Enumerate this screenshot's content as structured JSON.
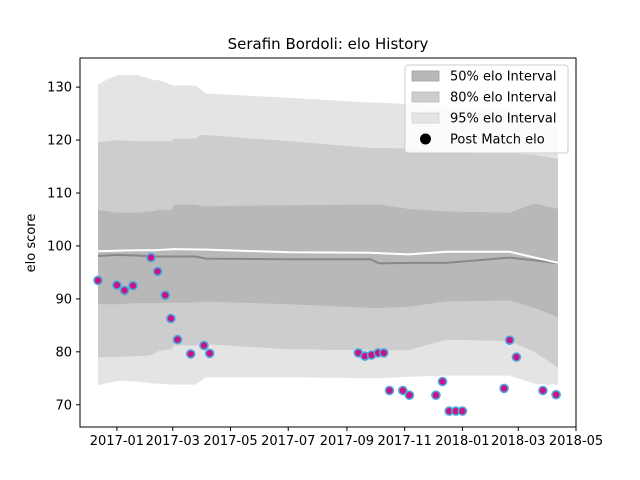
{
  "chart_data": {
    "type": "line",
    "title": "Serafin Bordoli: elo History",
    "xlabel": "",
    "ylabel": "elo score",
    "xlim": [
      "2016-11-23",
      "2018-05-01"
    ],
    "ylim": [
      65.8,
      135.5
    ],
    "x_ticks": [
      "2017-01",
      "2017-03",
      "2017-05",
      "2017-07",
      "2017-09",
      "2017-11",
      "2018-01",
      "2018-03",
      "2018-05"
    ],
    "y_ticks": [
      70,
      80,
      90,
      100,
      110,
      120,
      130
    ],
    "grid": false,
    "legend": {
      "placement": "top-right",
      "entries": [
        "50% elo Interval",
        "80% elo Interval",
        "95% elo Interval",
        "Post Match elo"
      ]
    },
    "bands": [
      {
        "name": "95% elo Interval",
        "color": "#e4e4e4",
        "x": [
          "2016-12-12",
          "2016-12-22",
          "2017-01-03",
          "2017-01-22",
          "2017-02-10",
          "2017-02-15",
          "2017-03-02",
          "2017-03-25",
          "2017-04-05",
          "2017-07-01",
          "2017-09-26",
          "2017-10-05",
          "2017-11-05",
          "2017-12-15",
          "2018-02-20",
          "2018-03-18",
          "2018-04-12"
        ],
        "lower": [
          73.7,
          74.1,
          74.5,
          74.4,
          74.0,
          74.0,
          73.8,
          73.8,
          75.2,
          75.2,
          75.0,
          75.0,
          75.3,
          75.5,
          75.5,
          74.0,
          73.8
        ],
        "upper": [
          130.5,
          131.5,
          132.3,
          132.3,
          131.3,
          131.3,
          130.3,
          130.3,
          128.8,
          128.0,
          127.1,
          127.1,
          126.8,
          126.4,
          125.7,
          124.5,
          122.0
        ]
      },
      {
        "name": "80% elo Interval",
        "color": "#cdcdcd",
        "x": [
          "2016-12-12",
          "2017-01-01",
          "2017-01-22",
          "2017-02-05",
          "2017-02-15",
          "2017-02-28",
          "2017-03-02",
          "2017-03-25",
          "2017-04-01",
          "2017-07-01",
          "2017-09-26",
          "2017-10-05",
          "2017-11-05",
          "2017-12-15",
          "2018-02-20",
          "2018-03-18",
          "2018-04-12"
        ],
        "lower": [
          79.0,
          79.0,
          79.2,
          79.3,
          80.2,
          80.5,
          81.2,
          81.2,
          81.5,
          80.5,
          80.3,
          80.3,
          80.3,
          82.3,
          82.0,
          80.0,
          77.0
        ],
        "upper": [
          119.6,
          120.0,
          119.8,
          119.8,
          119.8,
          119.8,
          120.3,
          120.3,
          121.0,
          119.8,
          118.5,
          118.5,
          118.4,
          117.8,
          117.5,
          117.2,
          116.5
        ]
      },
      {
        "name": "50% elo Interval",
        "color": "#b8b8b8",
        "x": [
          "2016-12-12",
          "2017-01-01",
          "2017-01-22",
          "2017-02-05",
          "2017-02-15",
          "2017-02-28",
          "2017-03-02",
          "2017-03-25",
          "2017-04-01",
          "2017-07-01",
          "2017-09-26",
          "2017-10-05",
          "2017-11-05",
          "2017-12-15",
          "2018-02-20",
          "2018-03-18",
          "2018-04-12"
        ],
        "lower": [
          89.0,
          89.0,
          89.2,
          89.2,
          89.2,
          89.3,
          89.3,
          89.3,
          89.5,
          89.0,
          88.3,
          88.3,
          88.5,
          89.5,
          89.7,
          88.3,
          86.5
        ],
        "upper": [
          106.8,
          106.3,
          106.3,
          106.5,
          106.8,
          106.8,
          107.8,
          107.8,
          107.5,
          107.7,
          107.8,
          107.8,
          107.0,
          106.5,
          106.3,
          108.0,
          107.0
        ]
      }
    ],
    "series": [
      {
        "kind": "median",
        "color": "#888888",
        "x": [
          "2016-12-12",
          "2017-01-01",
          "2017-01-22",
          "2017-02-10",
          "2017-03-02",
          "2017-03-25",
          "2017-04-05",
          "2017-07-01",
          "2017-09-26",
          "2017-10-05",
          "2017-11-05",
          "2017-12-15",
          "2018-02-20",
          "2018-03-18",
          "2018-04-12"
        ],
        "values": [
          98.1,
          98.3,
          98.2,
          98.0,
          98.0,
          98.0,
          97.6,
          97.5,
          97.5,
          96.7,
          96.8,
          96.8,
          97.8,
          97.3,
          96.7
        ]
      },
      {
        "kind": "mean",
        "color": "#ffffff",
        "x": [
          "2016-12-12",
          "2017-01-01",
          "2017-01-22",
          "2017-02-10",
          "2017-03-02",
          "2017-04-05",
          "2017-07-01",
          "2017-09-26",
          "2017-11-05",
          "2017-12-15",
          "2018-02-20",
          "2018-04-12"
        ],
        "values": [
          99.0,
          99.1,
          99.2,
          99.2,
          99.4,
          99.3,
          98.8,
          98.7,
          98.4,
          98.9,
          98.9,
          96.8
        ]
      },
      {
        "name": "Post Match elo",
        "kind": "points",
        "fill": "#c71585",
        "edge": "#4da8da",
        "x": [
          "2016-12-12",
          "2017-01-01",
          "2017-01-09",
          "2017-01-18",
          "2017-02-06",
          "2017-02-13",
          "2017-02-21",
          "2017-02-27",
          "2017-03-06",
          "2017-03-20",
          "2017-04-03",
          "2017-04-09",
          "2017-09-13",
          "2017-09-20",
          "2017-09-27",
          "2017-10-04",
          "2017-10-10",
          "2017-10-16",
          "2017-10-30",
          "2017-11-06",
          "2017-12-04",
          "2017-12-11",
          "2017-12-18",
          "2017-12-25",
          "2018-01-01",
          "2018-02-14",
          "2018-02-20",
          "2018-02-27",
          "2018-03-27",
          "2018-04-10"
        ],
        "values": [
          93.5,
          92.6,
          91.6,
          92.5,
          97.8,
          95.2,
          90.7,
          86.3,
          82.3,
          79.6,
          81.2,
          79.7,
          79.8,
          79.2,
          79.4,
          79.8,
          79.8,
          72.7,
          72.7,
          71.8,
          71.8,
          74.4,
          68.8,
          68.8,
          68.8,
          73.1,
          82.2,
          79.0,
          72.7,
          71.9
        ]
      }
    ]
  }
}
